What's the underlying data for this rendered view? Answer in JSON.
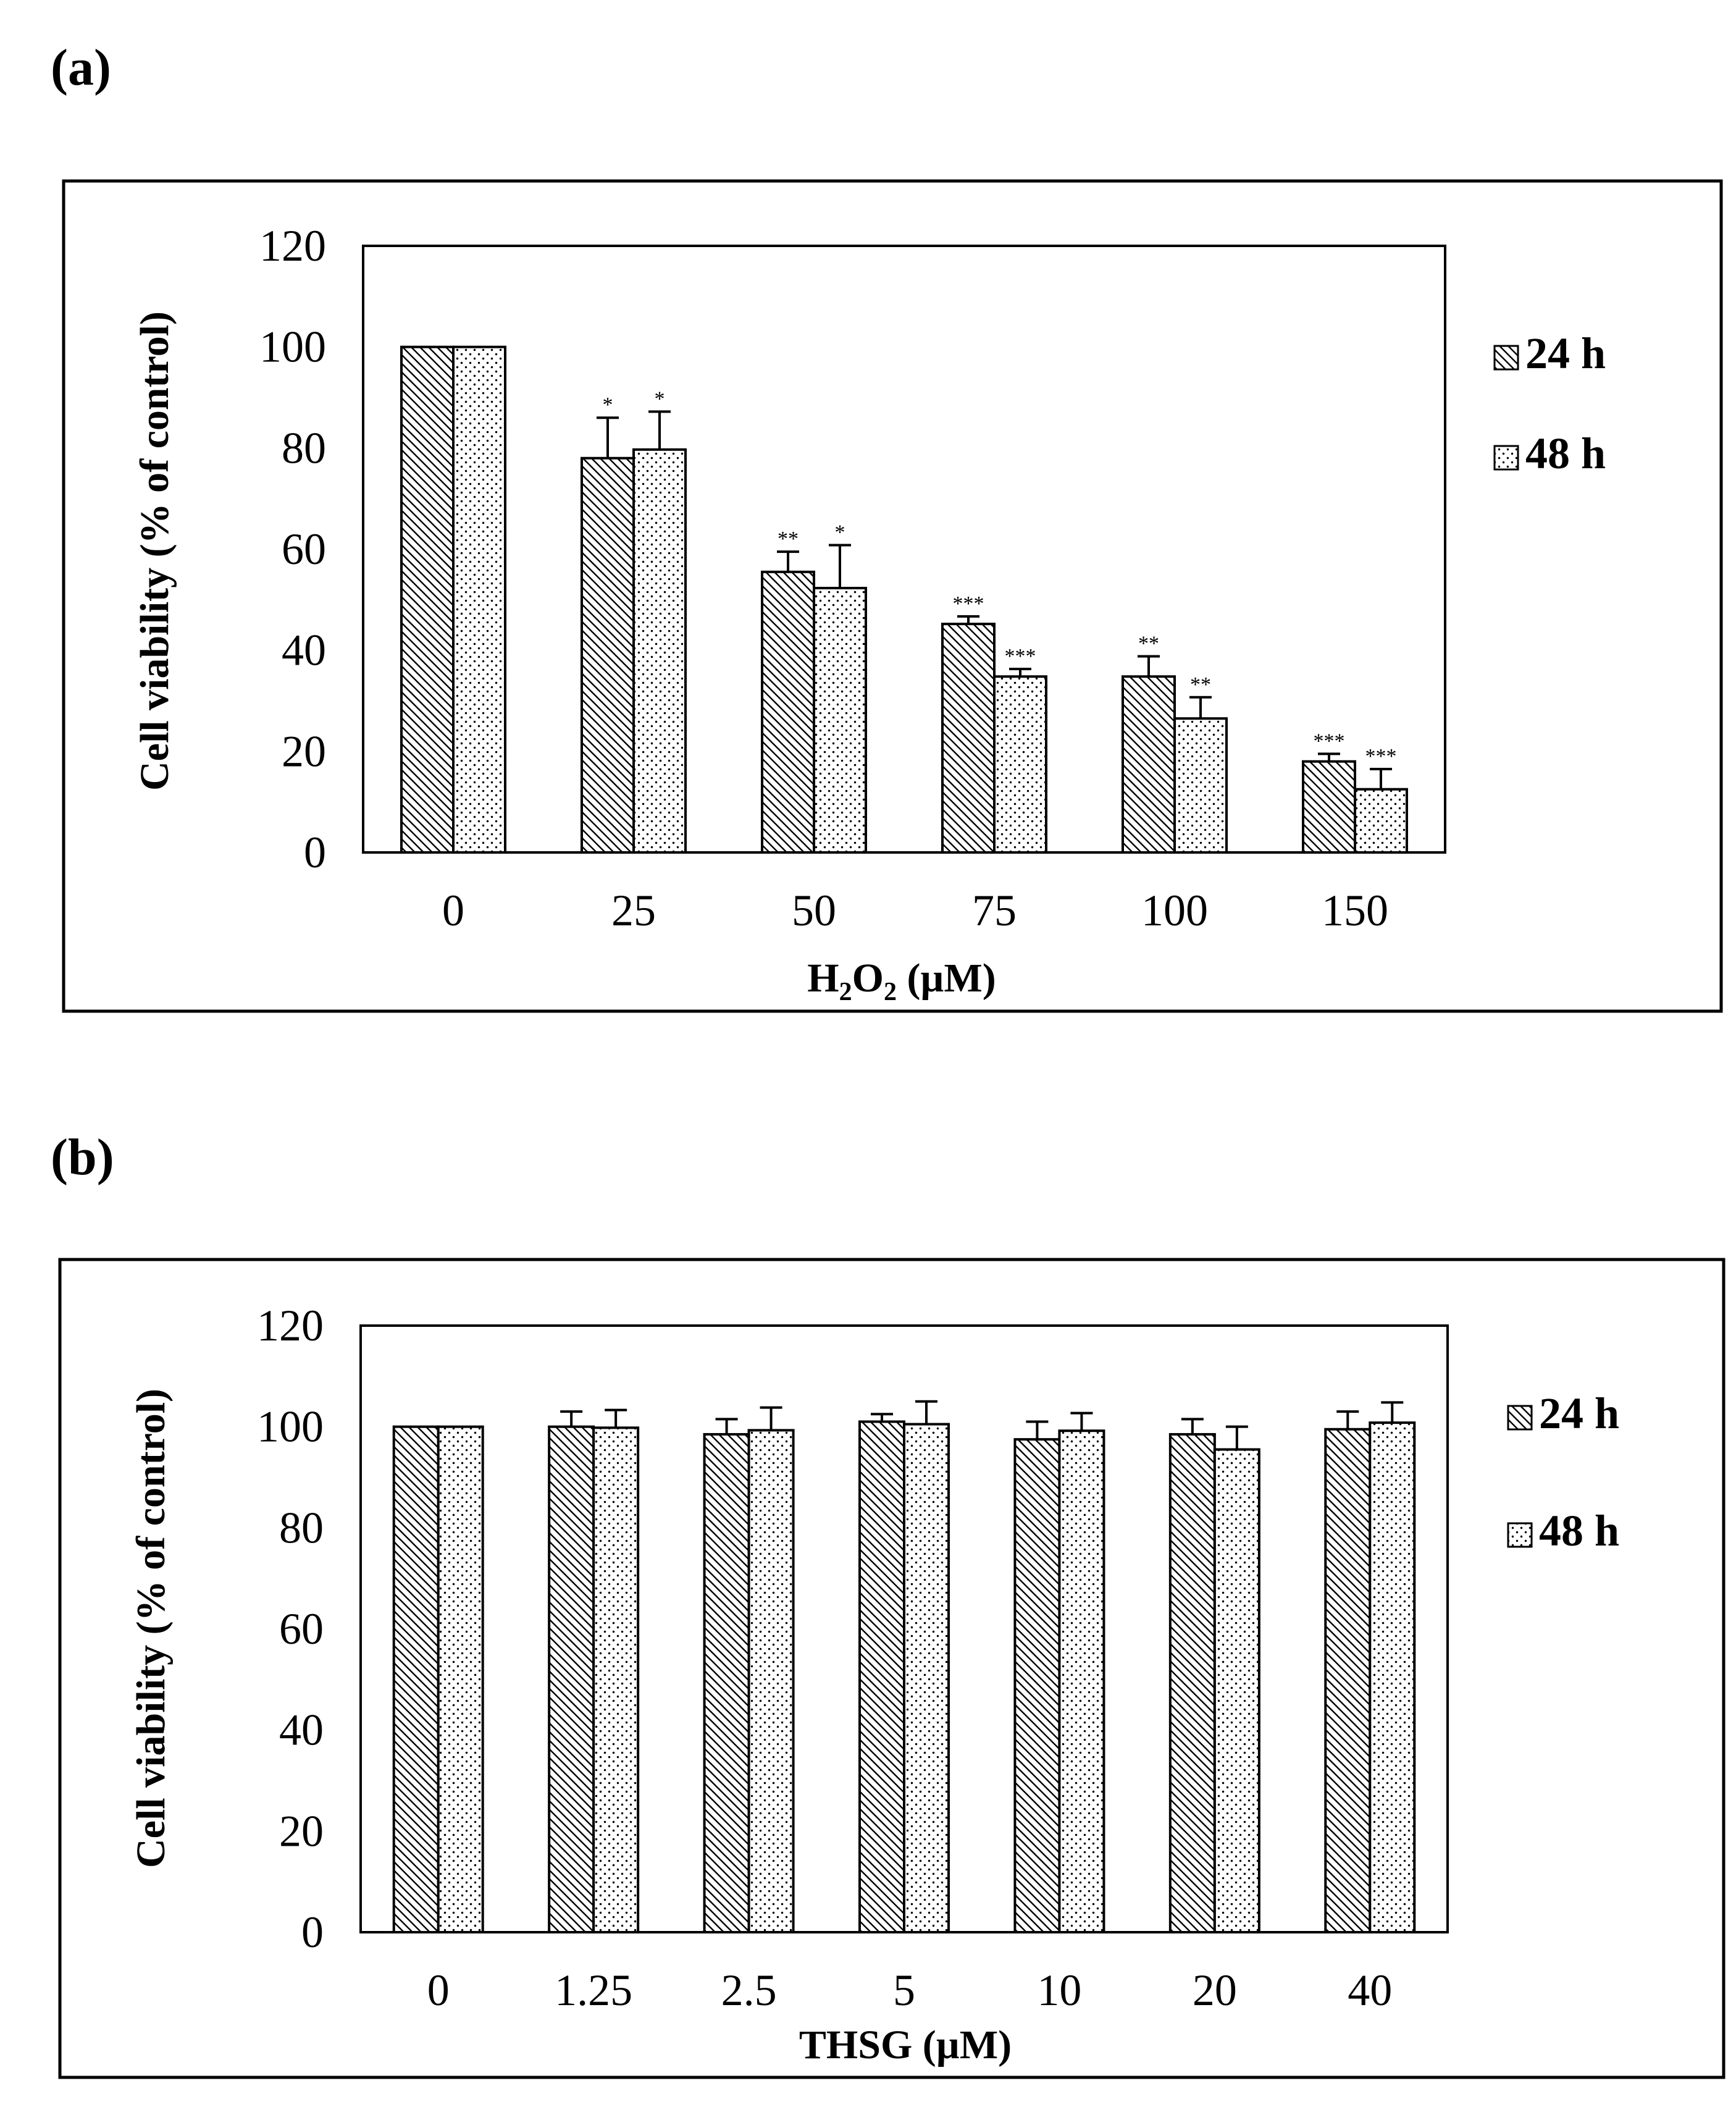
{
  "panels": {
    "a": {
      "label": "(a)"
    },
    "b": {
      "label": "(b)"
    }
  },
  "chart_data": [
    {
      "type": "bar",
      "title": "",
      "xlabel": "H2O2 (µM)",
      "xlabel_parts": {
        "base1": "H",
        "sub1": "2",
        "base2": "O",
        "sub2": "2",
        "rest": " (µM)"
      },
      "ylabel": "Cell viability (% of control)",
      "ylim": [
        0,
        120
      ],
      "yticks": [
        0,
        20,
        40,
        60,
        80,
        100,
        120
      ],
      "categories": [
        "0",
        "25",
        "50",
        "75",
        "100",
        "150"
      ],
      "legend_position": "right",
      "series": [
        {
          "name": "24 h",
          "pattern": "diagonal-hatch",
          "values": [
            100,
            78,
            55.5,
            45.2,
            34.8,
            18
          ],
          "errors": [
            0,
            8,
            4,
            1.5,
            4,
            1.5
          ],
          "significance": [
            "",
            "*",
            "**",
            "***",
            "**",
            "***"
          ]
        },
        {
          "name": "48 h",
          "pattern": "dots",
          "values": [
            100,
            79.7,
            52.3,
            34.8,
            26.5,
            12.5
          ],
          "errors": [
            0,
            7.5,
            8.5,
            1.5,
            4.2,
            4
          ],
          "significance": [
            "",
            "*",
            "*",
            "***",
            "**",
            "***"
          ]
        }
      ]
    },
    {
      "type": "bar",
      "title": "",
      "xlabel": "THSG (µM)",
      "ylabel": "Cell viability (% of control)",
      "ylim": [
        0,
        120
      ],
      "yticks": [
        0,
        20,
        40,
        60,
        80,
        100,
        120
      ],
      "categories": [
        "0",
        "1.25",
        "2.5",
        "5",
        "10",
        "20",
        "40"
      ],
      "legend_position": "right",
      "series": [
        {
          "name": "24 h",
          "pattern": "diagonal-hatch",
          "values": [
            100,
            100,
            98.5,
            101,
            97.5,
            98.5,
            99.5
          ],
          "errors": [
            0,
            3,
            3,
            1.5,
            3.5,
            3,
            3.5
          ]
        },
        {
          "name": "48 h",
          "pattern": "dots",
          "values": [
            100,
            99.8,
            99.3,
            100.5,
            99.2,
            95.5,
            100.8
          ],
          "errors": [
            0,
            3.5,
            4.5,
            4.5,
            3.5,
            4.5,
            4
          ]
        }
      ]
    }
  ]
}
